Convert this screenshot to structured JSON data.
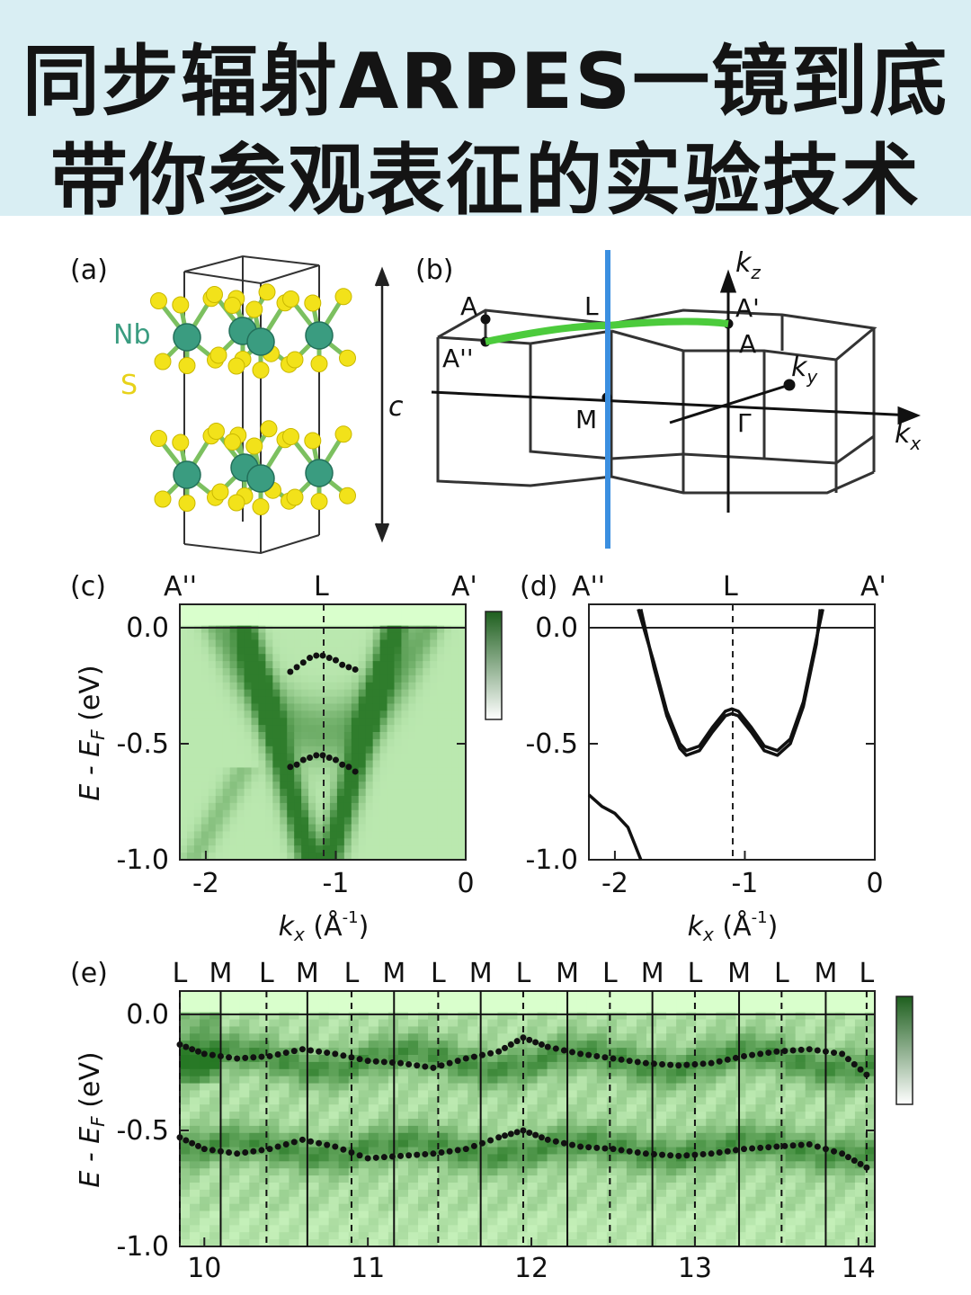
{
  "banner": {
    "line1": "同步辐射ARPES一镜到底",
    "line2": "带你参观表征的实验技术",
    "underline_color": "#e0191e"
  },
  "panel_a": {
    "label": "(a)",
    "atom_nb": "Nb",
    "atom_s": "S",
    "axis_c": "c",
    "nb_color": "#3a9c80",
    "s_color": "#f2e21a"
  },
  "panel_b": {
    "label": "(b)",
    "points": {
      "A": "A",
      "L": "L",
      "A_prime": "A'",
      "A_double_prime": "A''",
      "M": "M",
      "Gamma": "Γ"
    },
    "axes": {
      "kz": "z",
      "ky": "y",
      "kx": "x",
      "k": "k"
    },
    "cut_color": "#3b8fe0",
    "path_color": "#4ccb3c"
  },
  "panel_c": {
    "label": "(c)",
    "top_labels": [
      "A''",
      "L",
      "A'"
    ],
    "y_ticks": [
      "0.0",
      "-0.5",
      "-1.0"
    ],
    "x_ticks": [
      "-2",
      "-1",
      "0"
    ],
    "ylabel": "E - E_F (eV)",
    "xlabel": "k_x (Å^-1)",
    "colorbar": [
      "#1e5f1e",
      "#ffffff"
    ]
  },
  "panel_d": {
    "label": "(d)",
    "top_labels": [
      "A''",
      "L",
      "A'"
    ],
    "y_ticks": [
      "0.0",
      "-0.5",
      "-1.0"
    ],
    "x_ticks": [
      "-2",
      "-1",
      "0"
    ],
    "xlabel": "k_x (Å^-1)"
  },
  "panel_e": {
    "label": "(e)",
    "top_labels": [
      "L",
      "M",
      "L",
      "M",
      "L",
      "M",
      "L",
      "M",
      "L",
      "M",
      "L",
      "M",
      "L",
      "M",
      "L",
      "M",
      "L"
    ],
    "y_ticks": [
      "0.0",
      "-0.5",
      "-1.0"
    ],
    "x_ticks": [
      "10",
      "11",
      "12",
      "13",
      "14"
    ],
    "ylabel": "E - E_F (eV)"
  },
  "chart_data": [
    {
      "type": "heatmap",
      "panel": "(c)",
      "xlim": [
        -2.2,
        0
      ],
      "ylim": [
        -1.0,
        0.1
      ],
      "x_ticks": [
        -2,
        -1,
        0
      ],
      "y_ticks": [
        0.0,
        -0.5,
        -1.0
      ],
      "vline_L": -1.1,
      "series": [
        {
          "values_x": [
            -1.35,
            -1.3,
            -1.25,
            -1.2,
            -1.15,
            -1.1,
            -1.05,
            -1.0,
            -0.95,
            -0.9,
            -0.85
          ],
          "values_y": [
            -0.19,
            -0.17,
            -0.15,
            -0.13,
            -0.12,
            -0.12,
            -0.13,
            -0.14,
            -0.16,
            -0.17,
            -0.18
          ]
        },
        {
          "values_x": [
            -1.35,
            -1.3,
            -1.25,
            -1.2,
            -1.15,
            -1.1,
            -1.05,
            -1.0,
            -0.95,
            -0.9,
            -0.85
          ],
          "values_y": [
            -0.6,
            -0.59,
            -0.57,
            -0.56,
            -0.55,
            -0.55,
            -0.56,
            -0.57,
            -0.59,
            -0.6,
            -0.62
          ]
        }
      ]
    },
    {
      "type": "line",
      "panel": "(d)",
      "xlim": [
        -2.2,
        0
      ],
      "ylim": [
        -1.0,
        0.1
      ],
      "x_ticks": [
        -2,
        -1,
        0
      ],
      "y_ticks": [
        0.0,
        -0.5,
        -1.0
      ],
      "vline_L": -1.1,
      "series": [
        {
          "x": [
            -1.82,
            -1.7,
            -1.6,
            -1.5,
            -1.45,
            -1.35,
            -1.25,
            -1.15,
            -1.1,
            -1.05,
            -0.95,
            -0.85,
            -0.75,
            -0.65,
            -0.55,
            -0.45,
            -0.4
          ],
          "y": [
            0.08,
            -0.15,
            -0.36,
            -0.5,
            -0.53,
            -0.51,
            -0.43,
            -0.36,
            -0.35,
            -0.36,
            -0.43,
            -0.51,
            -0.53,
            -0.48,
            -0.32,
            -0.05,
            0.08
          ]
        },
        {
          "x": [
            -1.8,
            -1.7,
            -1.6,
            -1.5,
            -1.45,
            -1.35,
            -1.25,
            -1.15,
            -1.1,
            -1.05,
            -0.95,
            -0.85,
            -0.75,
            -0.65,
            -0.55,
            -0.45,
            -0.42
          ],
          "y": [
            0.08,
            -0.17,
            -0.38,
            -0.52,
            -0.55,
            -0.53,
            -0.45,
            -0.38,
            -0.37,
            -0.38,
            -0.45,
            -0.53,
            -0.55,
            -0.5,
            -0.34,
            -0.07,
            0.08
          ]
        },
        {
          "x": [
            -2.2,
            -2.1,
            -2.0,
            -1.9,
            -1.85,
            -1.8
          ],
          "y": [
            -0.72,
            -0.77,
            -0.8,
            -0.86,
            -0.93,
            -1.0
          ]
        }
      ]
    },
    {
      "type": "heatmap",
      "panel": "(e)",
      "xlim": [
        9.85,
        14.1
      ],
      "ylim": [
        -1.0,
        0.1
      ],
      "x_ticks": [
        10,
        11,
        12,
        13,
        14
      ],
      "y_ticks": [
        0.0,
        -0.5,
        -1.0
      ],
      "L_positions": [
        9.85,
        10.38,
        10.9,
        11.43,
        11.95,
        12.48,
        13.0,
        13.53,
        14.05
      ],
      "M_positions": [
        10.1,
        10.63,
        11.16,
        11.69,
        12.22,
        12.74,
        13.27,
        13.8
      ],
      "series": [
        {
          "x": [
            9.85,
            10.0,
            10.2,
            10.4,
            10.6,
            10.8,
            11.0,
            11.2,
            11.4,
            11.6,
            11.8,
            11.95,
            12.1,
            12.3,
            12.5,
            12.7,
            12.9,
            13.1,
            13.3,
            13.5,
            13.7,
            13.9,
            14.05
          ],
          "y": [
            -0.13,
            -0.17,
            -0.19,
            -0.18,
            -0.15,
            -0.17,
            -0.2,
            -0.21,
            -0.23,
            -0.19,
            -0.16,
            -0.1,
            -0.14,
            -0.17,
            -0.19,
            -0.21,
            -0.22,
            -0.21,
            -0.18,
            -0.16,
            -0.15,
            -0.17,
            -0.26
          ]
        },
        {
          "x": [
            9.85,
            10.0,
            10.2,
            10.4,
            10.6,
            10.8,
            11.0,
            11.2,
            11.4,
            11.6,
            11.8,
            11.95,
            12.1,
            12.3,
            12.5,
            12.7,
            12.9,
            13.1,
            13.3,
            13.5,
            13.7,
            13.9,
            14.05
          ],
          "y": [
            -0.53,
            -0.58,
            -0.6,
            -0.58,
            -0.54,
            -0.57,
            -0.62,
            -0.61,
            -0.6,
            -0.58,
            -0.53,
            -0.5,
            -0.54,
            -0.57,
            -0.58,
            -0.6,
            -0.61,
            -0.6,
            -0.58,
            -0.57,
            -0.56,
            -0.6,
            -0.66
          ]
        }
      ]
    }
  ]
}
